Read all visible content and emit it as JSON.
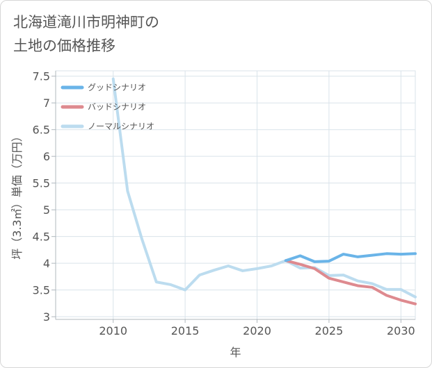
{
  "title_lines": [
    "北海道滝川市明神町の",
    "土地の価格推移"
  ],
  "chart_data": {
    "type": "line",
    "title": "北海道滝川市明神町の土地の価格推移",
    "xlabel": "年",
    "ylabel": "坪（3.3㎡）単価（万円）",
    "xlim": [
      2006,
      2031
    ],
    "ylim": [
      2.95,
      7.6
    ],
    "xticks": [
      2010,
      2015,
      2020,
      2025,
      2030
    ],
    "yticks": [
      3,
      3.5,
      4,
      4.5,
      5,
      5.5,
      6,
      6.5,
      7,
      7.5
    ],
    "grid": true,
    "legend_position": "top-left",
    "series": [
      {
        "name": "グッドシナリオ",
        "color": "#6ab4e8",
        "x": [
          2022,
          2023,
          2024,
          2025,
          2026,
          2027,
          2028,
          2029,
          2030,
          2031
        ],
        "y": [
          4.05,
          4.14,
          4.03,
          4.04,
          4.17,
          4.12,
          4.15,
          4.18,
          4.17,
          4.18
        ]
      },
      {
        "name": "バッドシナリオ",
        "color": "#de8a8f",
        "x": [
          2022,
          2023,
          2024,
          2025,
          2026,
          2027,
          2028,
          2029,
          2030,
          2031
        ],
        "y": [
          4.05,
          3.98,
          3.9,
          3.72,
          3.65,
          3.58,
          3.55,
          3.4,
          3.31,
          3.24
        ]
      },
      {
        "name": "ノーマルシナリオ",
        "color": "#bcdcef",
        "x": [
          2010,
          2011,
          2012,
          2013,
          2014,
          2015,
          2016,
          2017,
          2018,
          2019,
          2020,
          2021,
          2022,
          2023,
          2024,
          2025,
          2026,
          2027,
          2028,
          2029,
          2030,
          2031
        ],
        "y": [
          7.45,
          5.35,
          4.45,
          3.65,
          3.6,
          3.5,
          3.78,
          3.87,
          3.95,
          3.86,
          3.9,
          3.95,
          4.05,
          3.91,
          3.92,
          3.77,
          3.78,
          3.67,
          3.62,
          3.51,
          3.51,
          3.37
        ]
      }
    ]
  }
}
